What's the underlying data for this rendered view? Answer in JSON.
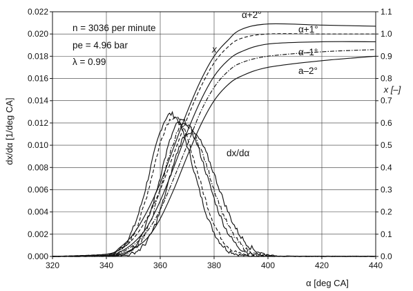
{
  "chart_data": {
    "type": "line",
    "title": "",
    "xlabel": "α [deg CA]",
    "ylabel_left": "dx/dα [1/deg CA]",
    "ylabel_right": "x [–]",
    "xlim": [
      320,
      440
    ],
    "ylim_left": [
      0,
      0.022
    ],
    "ylim_right": [
      0,
      1.1
    ],
    "x_ticks": [
      "320",
      "340",
      "360",
      "380",
      "400",
      "420",
      "440"
    ],
    "y_left_ticks": [
      "0.000",
      "0.002",
      "0.004",
      "0.006",
      "0.008",
      "0.010",
      "0.012",
      "0.014",
      "0.016",
      "0.018",
      "0.020",
      "0.022"
    ],
    "y_right_ticks": [
      "0.0",
      "0.1",
      "0.2",
      "0.3",
      "0.4",
      "0.5",
      "0.6",
      "0.7",
      "0.8",
      "0.9",
      "1.0",
      "1.1"
    ],
    "grid": true,
    "annotations": {
      "speed": "n = 3036 per minute",
      "pressure": "pe = 4.96 bar",
      "lambda": "λ = 0.99",
      "x_curve_label": "x",
      "rate_curve_label": "dx/dα",
      "alpha_plus2": "α+2°",
      "alpha_plus1": "α+1°",
      "alpha_minus1": "α–1°",
      "alpha_minus2": "a–2°"
    },
    "series_x": [
      {
        "name": "α+2°",
        "style": "solid",
        "x": [
          320,
          340,
          345,
          350,
          355,
          360,
          365,
          370,
          375,
          380,
          385,
          390,
          400,
          420,
          440
        ],
        "values": [
          0.0,
          0.01,
          0.04,
          0.1,
          0.2,
          0.33,
          0.49,
          0.65,
          0.79,
          0.9,
          0.97,
          1.02,
          1.045,
          1.04,
          1.035
        ]
      },
      {
        "name": "α+1°",
        "style": "dashed",
        "x": [
          320,
          340,
          345,
          350,
          355,
          360,
          365,
          370,
          375,
          380,
          385,
          390,
          400,
          420,
          440
        ],
        "values": [
          0.0,
          0.01,
          0.03,
          0.08,
          0.17,
          0.3,
          0.46,
          0.62,
          0.76,
          0.87,
          0.94,
          0.98,
          1.0,
          1.0,
          1.0
        ]
      },
      {
        "name": "α",
        "style": "solid",
        "x": [
          320,
          340,
          345,
          350,
          355,
          360,
          365,
          370,
          375,
          380,
          385,
          390,
          400,
          420,
          440
        ],
        "values": [
          0.0,
          0.005,
          0.02,
          0.06,
          0.13,
          0.25,
          0.4,
          0.56,
          0.7,
          0.81,
          0.88,
          0.92,
          0.955,
          0.965,
          0.965
        ]
      },
      {
        "name": "α–1°",
        "style": "dashdot",
        "x": [
          320,
          340,
          345,
          350,
          355,
          360,
          365,
          370,
          375,
          380,
          385,
          390,
          400,
          420,
          440
        ],
        "values": [
          0.0,
          0.005,
          0.015,
          0.05,
          0.11,
          0.21,
          0.35,
          0.5,
          0.65,
          0.76,
          0.83,
          0.87,
          0.9,
          0.92,
          0.93
        ]
      },
      {
        "name": "a–2°",
        "style": "solid",
        "x": [
          320,
          340,
          345,
          350,
          355,
          360,
          365,
          370,
          375,
          380,
          385,
          390,
          400,
          420,
          440
        ],
        "values": [
          0.0,
          0.003,
          0.01,
          0.035,
          0.08,
          0.17,
          0.3,
          0.45,
          0.59,
          0.7,
          0.77,
          0.81,
          0.85,
          0.88,
          0.9
        ]
      }
    ],
    "series_rate": [
      {
        "name": "α+2°",
        "style": "solid",
        "peak_x": 364,
        "peak_y": 0.0128,
        "width_left": 11,
        "width_right": 12
      },
      {
        "name": "α+1°",
        "style": "dashed",
        "peak_x": 365,
        "peak_y": 0.0125,
        "width_left": 11,
        "width_right": 12.5
      },
      {
        "name": "α",
        "style": "solid",
        "peak_x": 368,
        "peak_y": 0.0122,
        "width_left": 11,
        "width_right": 13
      },
      {
        "name": "α–1°",
        "style": "dashdot",
        "peak_x": 369,
        "peak_y": 0.0118,
        "width_left": 11,
        "width_right": 13.5
      },
      {
        "name": "a–2°",
        "style": "solid",
        "peak_x": 371,
        "peak_y": 0.0112,
        "width_left": 11,
        "width_right": 14
      }
    ]
  }
}
